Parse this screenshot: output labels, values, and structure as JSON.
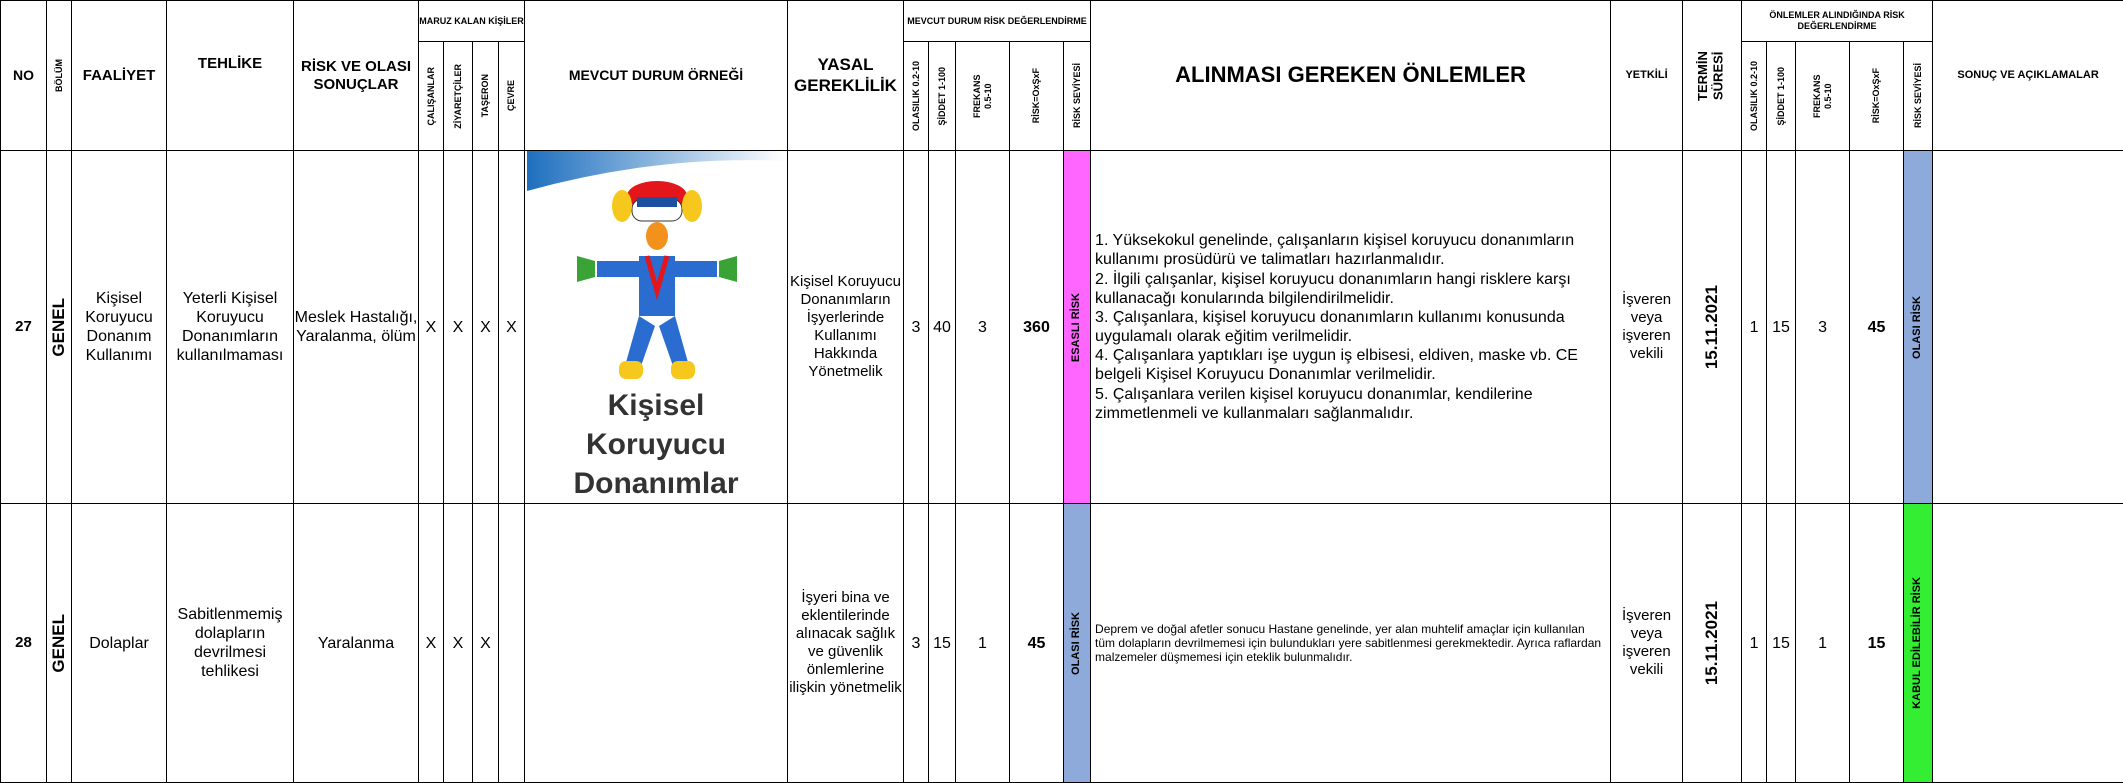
{
  "header": {
    "no": "NO",
    "bolum": "BÖLÜM",
    "faaliyet": "FAALİYET",
    "tehlike": "TEHLİKE",
    "sonuclar": "RİSK VE OLASI SONUÇLAR",
    "maruz": "MARUZ KALAN KİŞİLER",
    "calisanlar": "ÇALIŞANLAR",
    "ziyaretciler": "ZİYARETÇİLER",
    "taseron": "TAŞERON",
    "cevre": "ÇEVRE",
    "mevcut_durum": "MEVCUT DURUM ÖRNEĞİ",
    "yasal": "YASAL GEREKLİLİK",
    "mevcut_risk": "MEVCUT DURUM RİSK DEĞERLENDİRME",
    "olasilik": "OLASILIK 0.2-10",
    "siddet": "ŞİDDET 1-100",
    "frekans": "FREKANS 0.5-10",
    "risk": "RİSK=OxŞxF",
    "risk_seviyesi": "RİSK SEVİYESİ",
    "onlemler": "ALINMASI GEREKEN ÖNLEMLER",
    "yetkili": "YETKİLİ",
    "termin": "TERMİN SÜRESİ",
    "sonraki_risk": "ÖNLEMLER ALINDIĞINDA RİSK DEĞERLENDİRME",
    "sonuc": "SONUÇ VE AÇIKLAMALAR"
  },
  "rows": [
    {
      "no": 27,
      "bolum": "GENEL",
      "faaliyet": "Kişisel Koruyucu Donanım Kullanımı",
      "tehlike": "Yeterli Kişisel Koruyucu Donanımların kullanılmaması",
      "sonuclar": "Meslek Hastalığı, Yaralanma, ölüm",
      "calisanlar": "X",
      "ziyaretciler": "X",
      "taseron": "X",
      "cevre": "X",
      "image_caption": "Kişisel Koruyucu Donanımlar",
      "yasal": "Kişisel Koruyucu Donanımların İşyerlerinde Kullanımı Hakkında Yönetmelik",
      "olasilik": 3,
      "siddet": 40,
      "frekans": 3,
      "risk": 360,
      "risk_seviyesi": "ESASLI RİSK",
      "risk_color": "#ff66ff",
      "onlemler": [
        "1. Yüksekokul genelinde, çalışanların kişisel koruyucu donanımların kullanımı prosüdürü ve talimatları hazırlanmalıdır.",
        "2. İlgili çalışanlar, kişisel koruyucu donanımların hangi risklere karşı kullanacağı konularında bilgilendirilmelidir.",
        "3. Çalışanlara, kişisel koruyucu donanımların kullanımı konusunda uygulamalı olarak eğitim verilmelidir.",
        "4. Çalışanlara yaptıkları işe uygun iş elbisesi, eldiven, maske vb. CE belgeli Kişisel Koruyucu Donanımlar verilmelidir.",
        "5. Çalışanlara verilen kişisel koruyucu donanımlar, kendilerine zimmetlenmeli ve kullanmaları sağlanmalıdır."
      ],
      "yetkili": "İşveren veya işveren vekili",
      "termin": "15.11.2021",
      "olasilik2": 1,
      "siddet2": 15,
      "frekans2": 3,
      "risk2": 45,
      "risk_seviyesi2": "OLASI RİSK",
      "risk_color2": "#8eaadb"
    },
    {
      "no": 28,
      "bolum": "GENEL",
      "faaliyet": "Dolaplar",
      "tehlike": "Sabitlenmemiş dolapların devrilmesi tehlikesi",
      "sonuclar": "Yaralanma",
      "calisanlar": "X",
      "ziyaretciler": "X",
      "taseron": "X",
      "yasal": "İşyeri bina ve eklentilerinde alınacak sağlık ve güvenlik önlemlerine ilişkin yönetmelik",
      "olasilik": 3,
      "siddet": 15,
      "frekans": 1,
      "risk": 45,
      "risk_seviyesi": "OLASI RİSK",
      "risk_color": "#8eaadb",
      "onlemler": [
        "Deprem ve doğal afetler sonucu Hastane genelinde, yer alan muhtelif amaçlar için kullanılan tüm dolapların devrilmemesi için  bulundukları yere sabitlenmesi gerekmektedir. Ayrıca raflardan malzemeler düşmemesi için eteklik bulunmalıdır."
      ],
      "yetkili": "İşveren veya işveren vekili",
      "termin": "15.11.2021",
      "olasilik2": 1,
      "siddet2": 15,
      "frekans2": 1,
      "risk2": 15,
      "risk_seviyesi2": "KABUL EDİLEBİLİR RİSK",
      "risk_color2": "#33ee33"
    }
  ]
}
